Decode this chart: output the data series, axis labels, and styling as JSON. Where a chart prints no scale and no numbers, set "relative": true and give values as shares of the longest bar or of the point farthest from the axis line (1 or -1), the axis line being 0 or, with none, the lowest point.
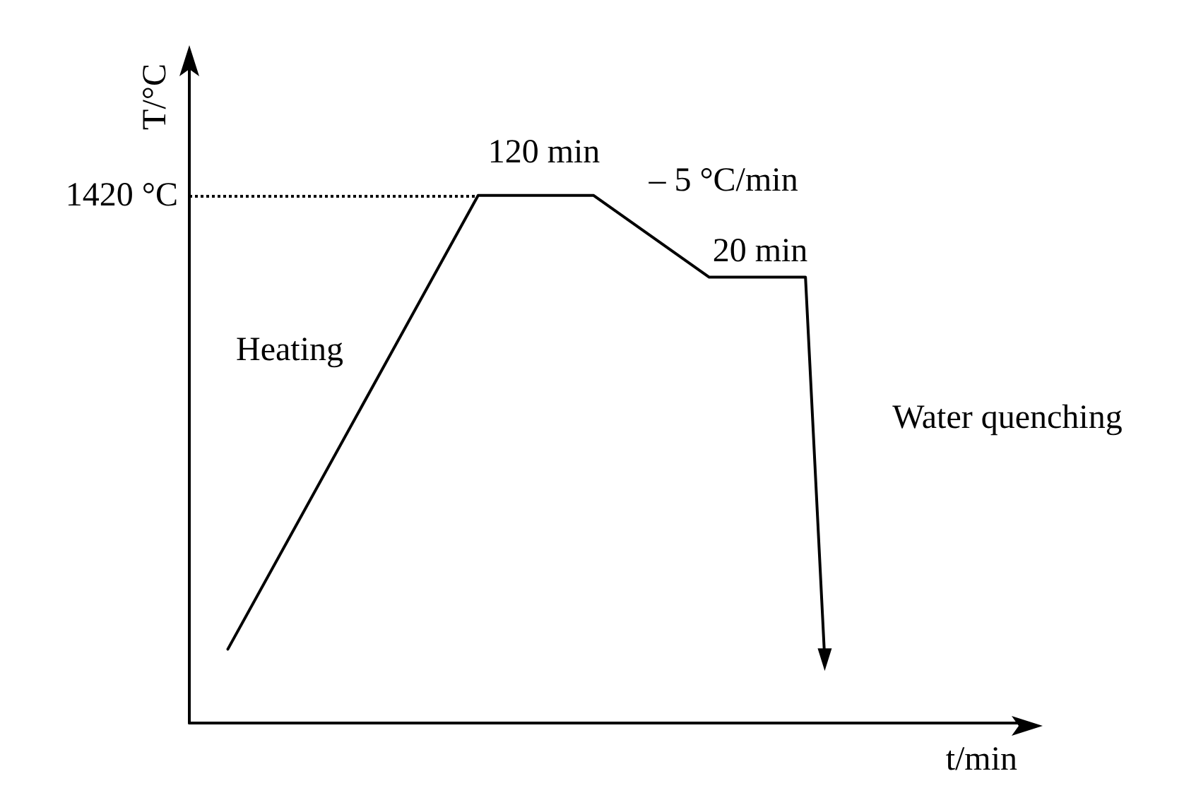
{
  "chart_data": {
    "type": "line",
    "relative": true,
    "xlabel": "t/min",
    "ylabel": "T/°C",
    "categories": [
      null,
      null,
      null,
      null,
      null,
      null,
      null,
      null,
      null,
      null,
      null,
      null,
      null,
      null,
      null,
      null,
      null,
      null,
      null,
      null,
      null,
      null,
      null,
      null,
      null,
      null,
      null,
      null,
      null,
      null,
      null,
      null,
      null,
      null,
      null,
      null,
      null,
      null,
      null,
      null,
      null,
      null,
      null,
      null
    ],
    "series": [
      {
        "color": "#000000",
        "values": [
          null,
          null,
          0.14,
          null,
          null,
          null,
          null,
          null,
          null,
          null,
          null,
          null,
          null,
          null,
          null,
          1,
          null,
          null,
          null,
          null,
          null,
          1,
          null,
          null,
          null,
          null,
          null,
          0.845,
          null,
          null,
          null,
          null,
          0.845,
          0.12,
          null,
          null,
          null,
          null,
          null,
          null,
          null,
          null,
          null,
          null
        ]
      }
    ],
    "ref_lines": [
      {
        "axis": "y",
        "value": 1,
        "label": "1420 °C",
        "line_style": "dotted",
        "color": "#000000"
      }
    ],
    "annotations": [
      "120 min",
      "– 5 °C/min",
      "20 min",
      "Heating",
      "Water quenching"
    ],
    "tick_labels": false,
    "grid": false,
    "marker": "none",
    "line_style": "solid"
  }
}
